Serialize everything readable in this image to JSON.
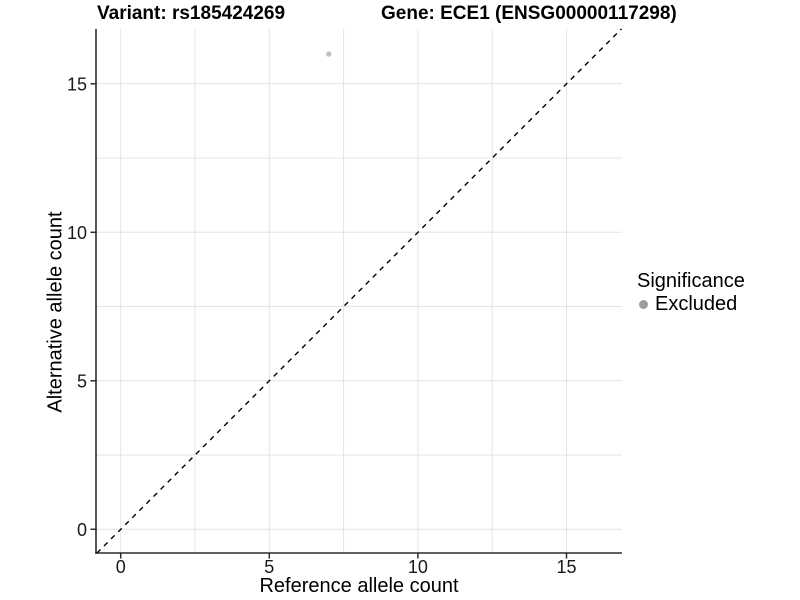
{
  "header": {
    "variant_title": "Variant: rs185424269",
    "gene_title": "Gene: ECE1 (ENSG00000117298)"
  },
  "axes": {
    "x_label": "Reference allele count",
    "y_label": "Alternative allele count"
  },
  "legend": {
    "title": "Significance",
    "items": [
      {
        "label": "Excluded",
        "marker_color": "#9e9e9e"
      }
    ]
  },
  "colors": {
    "background": "#ffffff",
    "gridline": "#e4e4e4",
    "axis_line": "#2b2b2b",
    "tick_mark": "#2b2b2b",
    "tick_text": "#1a1a1a",
    "title_text": "#000000",
    "identity_line": "#000000",
    "point": "#c0c0c0"
  },
  "chart_data": {
    "type": "scatter",
    "title": "Variant: rs185424269 | Gene: ECE1 (ENSG00000117298)",
    "xlabel": "Reference allele count",
    "ylabel": "Alternative allele count",
    "xlim": [
      -0.83,
      16.88
    ],
    "ylim": [
      -0.8,
      16.85
    ],
    "x_major_ticks": [
      0,
      5,
      10,
      15
    ],
    "y_major_ticks": [
      0,
      5,
      10,
      15
    ],
    "minor_step": 2.5,
    "grid": "major+minor",
    "legend_position": "right",
    "identity_line": {
      "slope": 1,
      "intercept": 0,
      "style": "dashed"
    },
    "series": [
      {
        "name": "Excluded",
        "color": "#c0c0c0",
        "points": [
          {
            "x": 7,
            "y": 16
          }
        ]
      }
    ]
  }
}
